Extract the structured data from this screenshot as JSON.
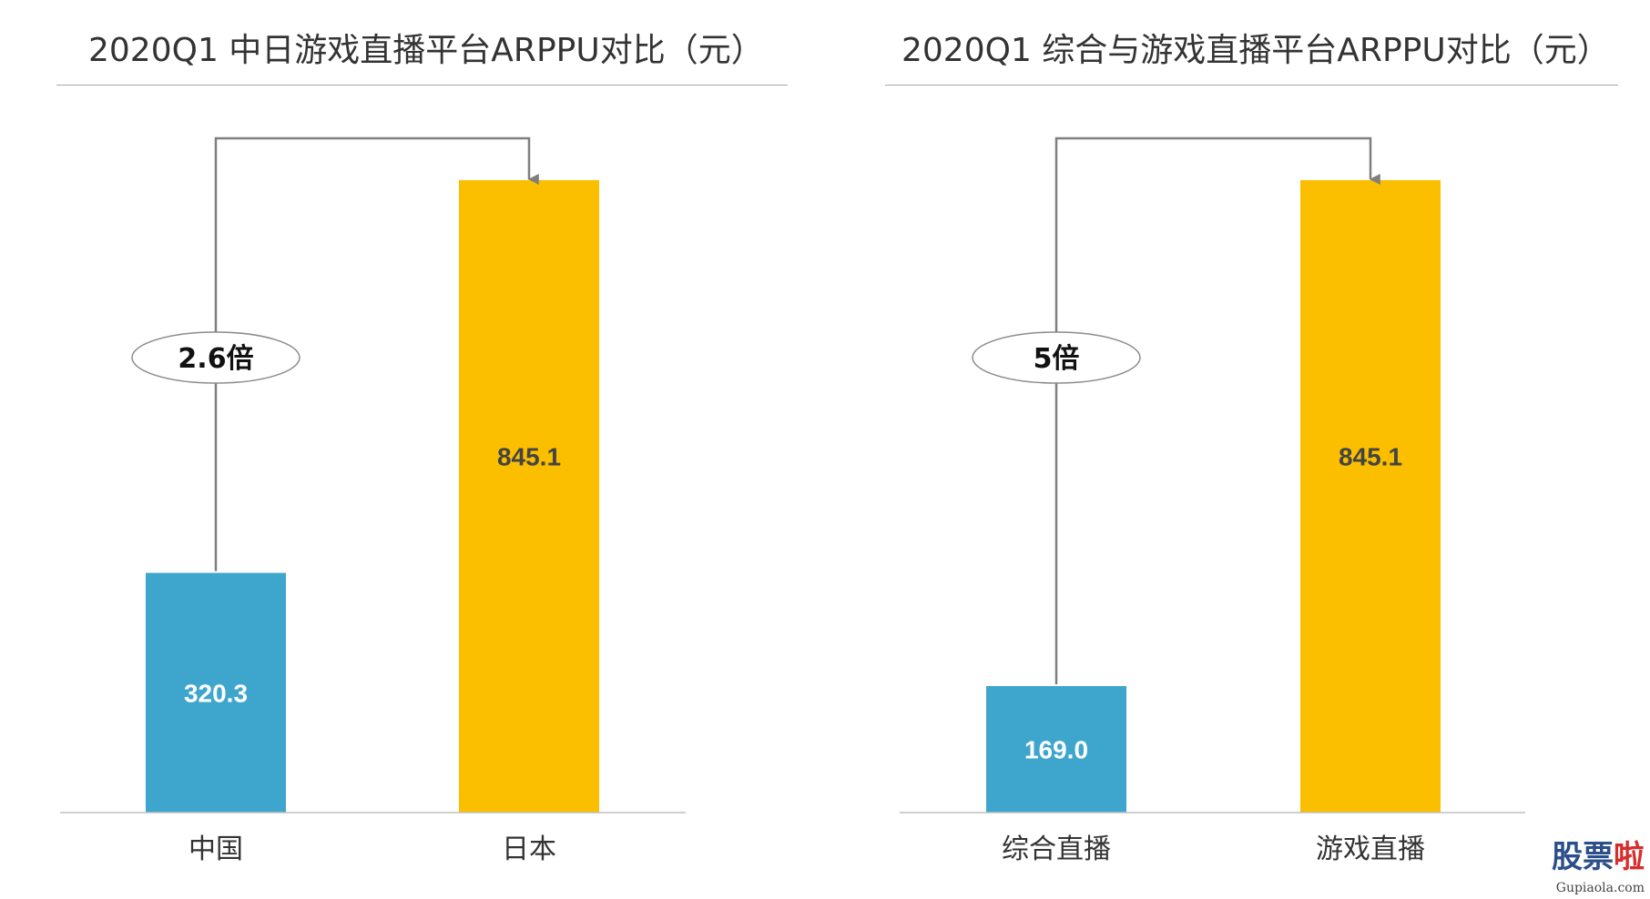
{
  "chart_data": [
    {
      "type": "bar",
      "title": "2020Q1 中日游戏直播平台ARPPU对比（元）",
      "categories": [
        "中国",
        "日本"
      ],
      "values": [
        320.3,
        845.1
      ],
      "value_labels": [
        "320.3",
        "845.1"
      ],
      "colors": [
        "#3ea6cc",
        "#fbbf00"
      ],
      "label_colors": [
        "#ffffff",
        "#444444"
      ],
      "ylim": [
        0,
        845.1
      ],
      "grid": false,
      "legend": "none",
      "annotation": {
        "text": "2.6倍",
        "from": 0,
        "to": 1
      }
    },
    {
      "type": "bar",
      "title": "2020Q1 综合与游戏直播平台ARPPU对比（元）",
      "categories": [
        "综合直播",
        "游戏直播"
      ],
      "values": [
        169.0,
        845.1
      ],
      "value_labels": [
        "169.0",
        "845.1"
      ],
      "colors": [
        "#3ea6cc",
        "#fbbf00"
      ],
      "label_colors": [
        "#ffffff",
        "#444444"
      ],
      "ylim": [
        0,
        845.1
      ],
      "grid": false,
      "legend": "none",
      "annotation": {
        "text": "5倍",
        "from": 0,
        "to": 1
      }
    }
  ],
  "watermark": {
    "logo_main": "股票",
    "logo_accent": "啦",
    "url": "Gupiaola.com"
  }
}
